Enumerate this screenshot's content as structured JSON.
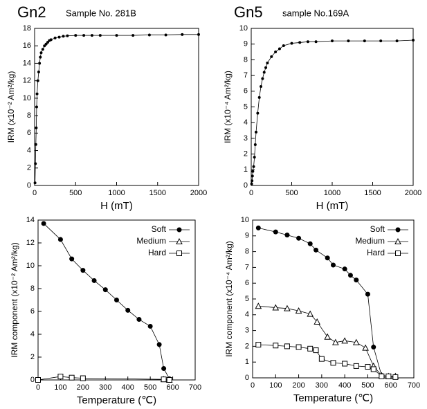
{
  "chart_data": [
    {
      "type": "line",
      "title": "Gn2",
      "subtitle": "Sample No. 281B",
      "x_label": "H (mT)",
      "y_label": "IRM (x10⁻² Am²/kg)",
      "color": "#000000",
      "x": [
        5,
        10,
        15,
        20,
        25,
        30,
        40,
        50,
        60,
        70,
        80,
        100,
        120,
        140,
        160,
        180,
        200,
        250,
        300,
        350,
        400,
        500,
        600,
        700,
        800,
        1000,
        1200,
        1400,
        1600,
        1800,
        2000
      ],
      "values": [
        0.3,
        2.5,
        4.7,
        6.6,
        9.0,
        10.5,
        12.0,
        13.0,
        14.0,
        14.7,
        15.2,
        15.6,
        16.0,
        16.2,
        16.4,
        16.6,
        16.7,
        16.9,
        17.0,
        17.1,
        17.15,
        17.2,
        17.2,
        17.2,
        17.2,
        17.2,
        17.2,
        17.25,
        17.25,
        17.3,
        17.3
      ],
      "xlim": [
        0,
        2000
      ],
      "xticks": [
        0,
        500,
        1000,
        1500,
        2000
      ],
      "ylim": [
        0,
        18
      ],
      "yticks": [
        0,
        2,
        4,
        6,
        8,
        10,
        12,
        14,
        16,
        18
      ]
    },
    {
      "type": "line",
      "title": "Gn5",
      "subtitle": "sample No.169A",
      "x_label": "H (mT)",
      "y_label": "IRM (x10⁻⁴ Am²/kg)",
      "color": "#000000",
      "x": [
        5,
        10,
        15,
        20,
        30,
        40,
        50,
        60,
        80,
        100,
        120,
        140,
        160,
        180,
        200,
        250,
        300,
        350,
        400,
        500,
        600,
        700,
        800,
        1000,
        1200,
        1400,
        1600,
        1800,
        2000
      ],
      "values": [
        0.1,
        0.3,
        0.6,
        0.9,
        1.2,
        1.8,
        2.6,
        3.4,
        4.6,
        5.6,
        6.3,
        6.8,
        7.2,
        7.5,
        7.8,
        8.2,
        8.5,
        8.7,
        8.9,
        9.05,
        9.1,
        9.15,
        9.15,
        9.2,
        9.2,
        9.2,
        9.2,
        9.2,
        9.25
      ],
      "xlim": [
        0,
        2000
      ],
      "xticks": [
        0,
        500,
        1000,
        1500,
        2000
      ],
      "ylim": [
        0,
        10
      ],
      "yticks": [
        0,
        1,
        2,
        3,
        4,
        5,
        6,
        7,
        8,
        9,
        10
      ]
    },
    {
      "type": "line",
      "x_label": "Temperature (℃)",
      "y_label": "IRM component (x10⁻² Am²/kg)",
      "series": [
        {
          "name": "Soft",
          "color": "#000000",
          "marker": "circle",
          "x": [
            25,
            100,
            150,
            200,
            250,
            300,
            350,
            400,
            450,
            500,
            540,
            560,
            585
          ],
          "values": [
            13.7,
            12.3,
            10.6,
            9.6,
            8.7,
            7.9,
            7.0,
            6.1,
            5.3,
            4.7,
            3.1,
            1.0,
            0.1
          ]
        },
        {
          "name": "Medium",
          "color": "#000000",
          "marker": "triangle",
          "x": [
            560,
            585
          ],
          "values": [
            0.05,
            0.0
          ]
        },
        {
          "name": "Hard",
          "color": "#000000",
          "marker": "square",
          "x": [
            0,
            100,
            150,
            200,
            560,
            585
          ],
          "values": [
            0.0,
            0.3,
            0.2,
            0.15,
            0.05,
            0.0
          ]
        }
      ],
      "xlim": [
        0,
        700
      ],
      "xticks": [
        0,
        100,
        200,
        300,
        400,
        500,
        600,
        700
      ],
      "ylim": [
        0,
        14
      ],
      "yticks": [
        0,
        2,
        4,
        6,
        8,
        10,
        12,
        14
      ],
      "legend": "upper-right"
    },
    {
      "type": "line",
      "x_label": "Temperature (℃)",
      "y_label": "IRM component (x10⁻⁴ Am²/kg)",
      "series": [
        {
          "name": "Soft",
          "color": "#000000",
          "marker": "circle",
          "x": [
            25,
            100,
            150,
            200,
            250,
            275,
            325,
            350,
            400,
            425,
            450,
            500,
            525,
            560,
            590,
            620
          ],
          "values": [
            9.5,
            9.25,
            9.05,
            8.85,
            8.5,
            8.1,
            7.6,
            7.15,
            6.9,
            6.5,
            6.2,
            5.3,
            1.95,
            0.15,
            0.1,
            0.1
          ]
        },
        {
          "name": "Medium",
          "color": "#000000",
          "marker": "triangle",
          "x": [
            25,
            100,
            150,
            200,
            250,
            280,
            325,
            360,
            400,
            450,
            490,
            525,
            560,
            590,
            620
          ],
          "values": [
            4.55,
            4.45,
            4.4,
            4.25,
            4.05,
            3.55,
            2.6,
            2.25,
            2.35,
            2.25,
            1.9,
            0.75,
            0.15,
            0.1,
            0.1
          ]
        },
        {
          "name": "Hard",
          "color": "#000000",
          "marker": "square",
          "x": [
            25,
            100,
            150,
            200,
            250,
            275,
            300,
            350,
            400,
            450,
            500,
            525,
            560,
            590,
            620
          ],
          "values": [
            2.1,
            2.05,
            2.0,
            1.95,
            1.85,
            1.75,
            1.2,
            0.95,
            0.9,
            0.75,
            0.7,
            0.55,
            0.1,
            0.1,
            0.05
          ]
        }
      ],
      "xlim": [
        0,
        700
      ],
      "xticks": [
        0,
        100,
        200,
        300,
        400,
        500,
        600,
        700
      ],
      "ylim": [
        0,
        10
      ],
      "yticks": [
        0,
        1,
        2,
        3,
        4,
        5,
        6,
        7,
        8,
        9,
        10
      ],
      "legend": "upper-right"
    }
  ]
}
